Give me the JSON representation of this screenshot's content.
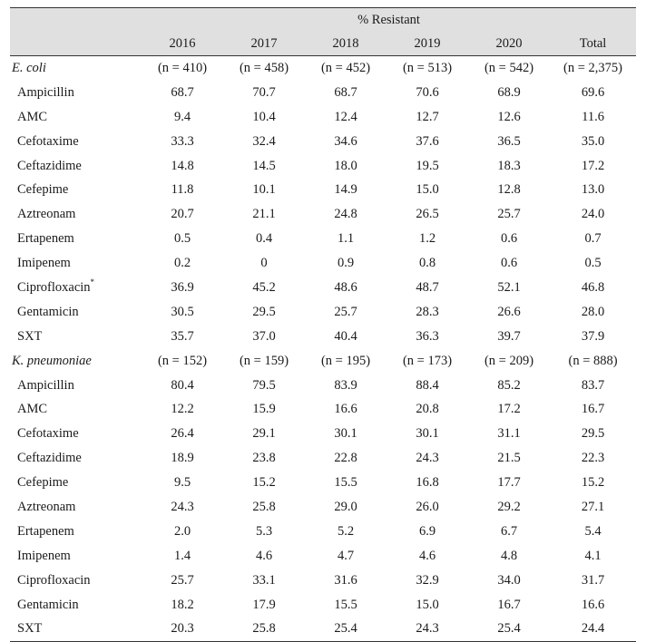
{
  "header": {
    "span_label": "% Resistant",
    "columns": [
      "",
      "2016",
      "2017",
      "2018",
      "2019",
      "2020",
      "Total"
    ]
  },
  "groups": [
    {
      "organism": "E. coli",
      "counts": [
        "(n = 410)",
        "(n = 458)",
        "(n = 452)",
        "(n = 513)",
        "(n = 542)",
        "(n = 2,375)"
      ],
      "rows": [
        {
          "drug": "Ampicillin",
          "values": [
            "68.7",
            "70.7",
            "68.7",
            "70.6",
            "68.9",
            "69.6"
          ]
        },
        {
          "drug": "AMC",
          "values": [
            "9.4",
            "10.4",
            "12.4",
            "12.7",
            "12.6",
            "11.6"
          ]
        },
        {
          "drug": "Cefotaxime",
          "values": [
            "33.3",
            "32.4",
            "34.6",
            "37.6",
            "36.5",
            "35.0"
          ]
        },
        {
          "drug": "Ceftazidime",
          "values": [
            "14.8",
            "14.5",
            "18.0",
            "19.5",
            "18.3",
            "17.2"
          ]
        },
        {
          "drug": "Cefepime",
          "values": [
            "11.8",
            "10.1",
            "14.9",
            "15.0",
            "12.8",
            "13.0"
          ]
        },
        {
          "drug": "Aztreonam",
          "values": [
            "20.7",
            "21.1",
            "24.8",
            "26.5",
            "25.7",
            "24.0"
          ]
        },
        {
          "drug": "Ertapenem",
          "values": [
            "0.5",
            "0.4",
            "1.1",
            "1.2",
            "0.6",
            "0.7"
          ]
        },
        {
          "drug": "Imipenem",
          "values": [
            "0.2",
            "0",
            "0.9",
            "0.8",
            "0.6",
            "0.5"
          ]
        },
        {
          "drug": "Ciprofloxacin",
          "sup": "*",
          "values": [
            "36.9",
            "45.2",
            "48.6",
            "48.7",
            "52.1",
            "46.8"
          ]
        },
        {
          "drug": "Gentamicin",
          "values": [
            "30.5",
            "29.5",
            "25.7",
            "28.3",
            "26.6",
            "28.0"
          ]
        },
        {
          "drug": "SXT",
          "values": [
            "35.7",
            "37.0",
            "40.4",
            "36.3",
            "39.7",
            "37.9"
          ]
        }
      ]
    },
    {
      "organism": "K. pneumoniae",
      "counts": [
        "(n = 152)",
        "(n = 159)",
        "(n = 195)",
        "(n = 173)",
        "(n = 209)",
        "(n = 888)"
      ],
      "rows": [
        {
          "drug": "Ampicillin",
          "values": [
            "80.4",
            "79.5",
            "83.9",
            "88.4",
            "85.2",
            "83.7"
          ]
        },
        {
          "drug": "AMC",
          "values": [
            "12.2",
            "15.9",
            "16.6",
            "20.8",
            "17.2",
            "16.7"
          ]
        },
        {
          "drug": "Cefotaxime",
          "values": [
            "26.4",
            "29.1",
            "30.1",
            "30.1",
            "31.1",
            "29.5"
          ]
        },
        {
          "drug": "Ceftazidime",
          "values": [
            "18.9",
            "23.8",
            "22.8",
            "24.3",
            "21.5",
            "22.3"
          ]
        },
        {
          "drug": "Cefepime",
          "values": [
            "9.5",
            "15.2",
            "15.5",
            "16.8",
            "17.7",
            "15.2"
          ]
        },
        {
          "drug": "Aztreonam",
          "values": [
            "24.3",
            "25.8",
            "29.0",
            "26.0",
            "29.2",
            "27.1"
          ]
        },
        {
          "drug": "Ertapenem",
          "values": [
            "2.0",
            "5.3",
            "5.2",
            "6.9",
            "6.7",
            "5.4"
          ]
        },
        {
          "drug": "Imipenem",
          "values": [
            "1.4",
            "4.6",
            "4.7",
            "4.6",
            "4.8",
            "4.1"
          ]
        },
        {
          "drug": "Ciprofloxacin",
          "values": [
            "25.7",
            "33.1",
            "31.6",
            "32.9",
            "34.0",
            "31.7"
          ]
        },
        {
          "drug": "Gentamicin",
          "values": [
            "18.2",
            "17.9",
            "15.5",
            "15.0",
            "16.7",
            "16.6"
          ]
        },
        {
          "drug": "SXT",
          "values": [
            "20.3",
            "25.8",
            "25.4",
            "24.3",
            "25.4",
            "24.4"
          ]
        }
      ]
    }
  ]
}
